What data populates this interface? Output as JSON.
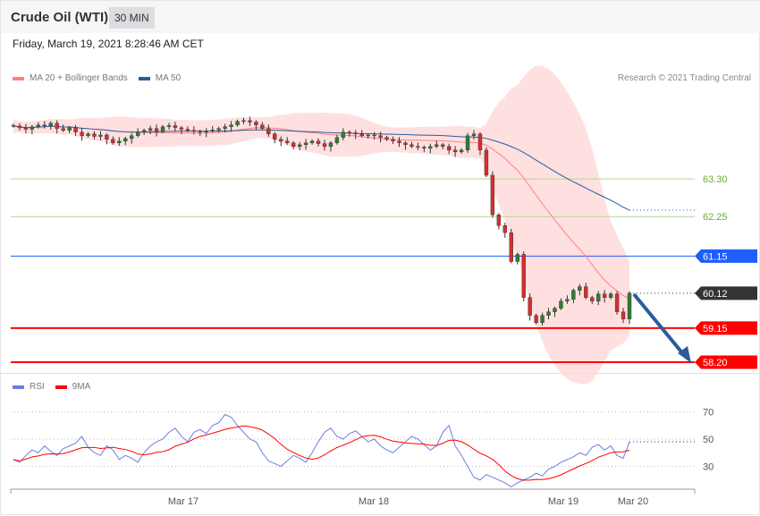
{
  "header": {
    "title": "Crude Oil (WTI)",
    "timeframe": "30 MIN"
  },
  "date": "Friday, March 19, 2021 8:28:46 AM CET",
  "legend": {
    "ma20": "MA 20 + Bollinger Bands",
    "ma50": "MA 50",
    "rsi": "RSI",
    "ma9": "9MA"
  },
  "credit": "Research © 2021 Trading Central",
  "colors": {
    "bull": "#2e7d32",
    "bear": "#d32f2f",
    "band": "#ffd6d6",
    "ma20": "#ff8080",
    "ma50": "#2d5b9a",
    "rsi": "#6b7fe0",
    "ma9": "#ff0000"
  },
  "levels": [
    {
      "value": "63.30",
      "type": "line",
      "color": "#6aab2e"
    },
    {
      "value": "62.25",
      "type": "line",
      "color": "#6aab2e"
    },
    {
      "value": "61.15",
      "type": "tag",
      "color": "#1e5eff"
    },
    {
      "value": "60.12",
      "type": "tag",
      "color": "#333333"
    },
    {
      "value": "59.15",
      "type": "tag",
      "color": "#ff0000"
    },
    {
      "value": "58.20",
      "type": "tag",
      "color": "#ff0000"
    }
  ],
  "chart_data": {
    "type": "candlestick",
    "closes": [
      64.77,
      64.72,
      64.68,
      64.75,
      64.8,
      64.78,
      64.85,
      64.7,
      64.65,
      64.72,
      64.6,
      64.5,
      64.55,
      64.48,
      64.52,
      64.4,
      64.3,
      64.35,
      64.42,
      64.5,
      64.6,
      64.65,
      64.7,
      64.62,
      64.75,
      64.78,
      64.72,
      64.68,
      64.65,
      64.62,
      64.6,
      64.63,
      64.66,
      64.7,
      64.75,
      64.8,
      64.9,
      64.92,
      64.88,
      64.8,
      64.7,
      64.55,
      64.4,
      64.35,
      64.3,
      64.2,
      64.25,
      64.3,
      64.35,
      64.28,
      64.2,
      64.3,
      64.45,
      64.6,
      64.58,
      64.55,
      64.5,
      64.52,
      64.5,
      64.45,
      64.4,
      64.35,
      64.3,
      64.25,
      64.2,
      64.18,
      64.15,
      64.2,
      64.25,
      64.2,
      64.1,
      64.05,
      64.1,
      64.5,
      64.55,
      64.1,
      63.4,
      62.3,
      62.0,
      61.8,
      61.0,
      61.2,
      60.0,
      59.5,
      59.3,
      59.5,
      59.6,
      59.7,
      59.9,
      59.95,
      60.2,
      60.3,
      60.0,
      59.9,
      60.1,
      60.0,
      60.1,
      59.6,
      59.4,
      60.12
    ],
    "rsi": [
      35,
      33,
      38,
      42,
      40,
      45,
      41,
      38,
      43,
      45,
      47,
      52,
      44,
      40,
      38,
      45,
      42,
      35,
      38,
      36,
      33,
      40,
      45,
      48,
      50,
      55,
      58,
      52,
      48,
      55,
      57,
      54,
      60,
      62,
      68,
      66,
      60,
      55,
      50,
      48,
      40,
      34,
      32,
      30,
      34,
      38,
      36,
      33,
      40,
      48,
      55,
      58,
      52,
      50,
      54,
      56,
      52,
      48,
      50,
      45,
      42,
      40,
      44,
      48,
      52,
      50,
      46,
      42,
      45,
      55,
      60,
      45,
      38,
      30,
      22,
      20,
      24,
      22,
      20,
      18,
      15,
      18,
      20,
      22,
      25,
      23,
      28,
      30,
      33,
      35,
      37,
      40,
      38,
      44,
      46,
      42,
      45,
      38,
      36,
      48
    ],
    "rsi_levels": [
      "70",
      "50",
      "30"
    ],
    "x_labels": [
      "Mar 17",
      "Mar 18",
      "Mar 19",
      "Mar 20"
    ]
  }
}
